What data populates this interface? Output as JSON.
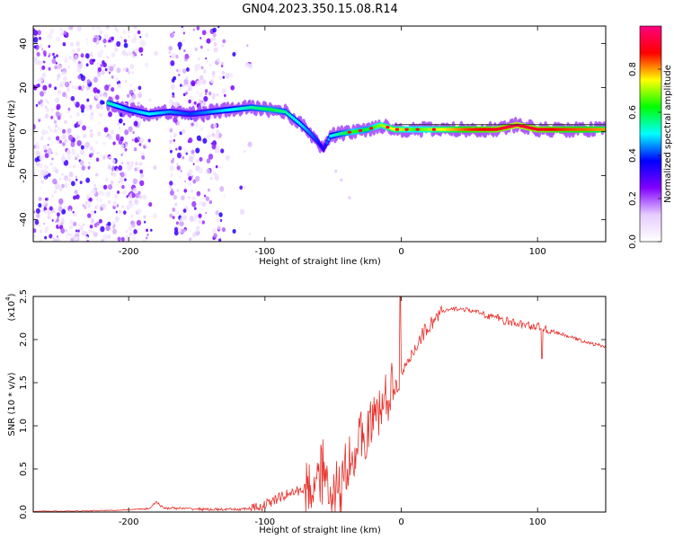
{
  "title": "GN04.2023.350.15.08.R14",
  "chart_data": [
    {
      "type": "heatmap",
      "xlabel": "Height of straight line (km)",
      "ylabel": "Frequency (Hz)",
      "xlim": [
        -270,
        150
      ],
      "ylim": [
        -50,
        48
      ],
      "xticks": [
        -200,
        -100,
        0,
        100
      ],
      "yticks": [
        -40,
        -20,
        0,
        20,
        40
      ],
      "colorbar": {
        "label": "Normalized spectral amplitude",
        "range": [
          0,
          1
        ],
        "ticks": [
          "0.0",
          "0.2",
          "0.4",
          "0.6",
          "0.8"
        ],
        "colormap": [
          "#ffffff",
          "#e6ccff",
          "#8000ff",
          "#0000ff",
          "#00ffff",
          "#00ff00",
          "#ffff00",
          "#ff0000",
          "#ff0080"
        ]
      },
      "ridge": [
        {
          "x": -215,
          "y": 13,
          "a": 0.55
        },
        {
          "x": -200,
          "y": 10,
          "a": 0.45
        },
        {
          "x": -185,
          "y": 8,
          "a": 0.5
        },
        {
          "x": -170,
          "y": 9,
          "a": 0.45
        },
        {
          "x": -155,
          "y": 8,
          "a": 0.4
        },
        {
          "x": -140,
          "y": 9,
          "a": 0.45
        },
        {
          "x": -125,
          "y": 10,
          "a": 0.5
        },
        {
          "x": -110,
          "y": 11,
          "a": 0.55
        },
        {
          "x": -95,
          "y": 10,
          "a": 0.6
        },
        {
          "x": -85,
          "y": 9,
          "a": 0.55
        },
        {
          "x": -75,
          "y": 4,
          "a": 0.5
        },
        {
          "x": -68,
          "y": 0,
          "a": 0.45
        },
        {
          "x": -62,
          "y": -4,
          "a": 0.4
        },
        {
          "x": -57,
          "y": -8,
          "a": 0.35
        },
        {
          "x": -52,
          "y": -2,
          "a": 0.5
        },
        {
          "x": -45,
          "y": -1,
          "a": 0.55
        },
        {
          "x": -35,
          "y": 0,
          "a": 0.65
        },
        {
          "x": -25,
          "y": 1,
          "a": 0.6
        },
        {
          "x": -15,
          "y": 3,
          "a": 0.7
        },
        {
          "x": -5,
          "y": 1,
          "a": 0.75
        },
        {
          "x": 10,
          "y": 1,
          "a": 0.65
        },
        {
          "x": 30,
          "y": 1,
          "a": 0.75
        },
        {
          "x": 50,
          "y": 1,
          "a": 0.85
        },
        {
          "x": 70,
          "y": 1,
          "a": 0.9
        },
        {
          "x": 85,
          "y": 3,
          "a": 0.95
        },
        {
          "x": 100,
          "y": 1,
          "a": 0.9
        },
        {
          "x": 120,
          "y": 1,
          "a": 0.85
        },
        {
          "x": 150,
          "y": 1,
          "a": 0.8
        }
      ]
    },
    {
      "type": "line",
      "xlabel": "Height of straight line (km)",
      "ylabel": "SNR (10 * v/v)",
      "yscale_label": "(x10",
      "yscale_exp": "4",
      "xlim": [
        -270,
        150
      ],
      "ylim": [
        0,
        2.5
      ],
      "xticks": [
        -200,
        -100,
        0,
        100
      ],
      "yticks": [
        "0.0",
        "0.5",
        "1.0",
        "1.5",
        "2.0",
        "2.5"
      ],
      "color": "#e8302a",
      "series": [
        {
          "x": [
            -270,
            -240,
            -210,
            -185,
            -180,
            -175,
            -160,
            -140,
            -120,
            -105,
            -95,
            -85,
            -75,
            -65,
            -60,
            -55,
            -50,
            -45,
            -40,
            -35,
            -30,
            -25,
            -20,
            -15,
            -10,
            -5,
            -2,
            0,
            5,
            10,
            15,
            20,
            25,
            30,
            40,
            50,
            60,
            70,
            80,
            90,
            100,
            110,
            120,
            130,
            140,
            150
          ],
          "y": [
            0.01,
            0.01,
            0.02,
            0.04,
            0.12,
            0.05,
            0.04,
            0.03,
            0.03,
            0.05,
            0.12,
            0.2,
            0.25,
            0.3,
            0.55,
            0.45,
            0.3,
            0.25,
            0.55,
            0.7,
            0.85,
            0.95,
            1.05,
            1.2,
            1.35,
            1.45,
            1.5,
            1.55,
            1.72,
            1.9,
            2.05,
            2.15,
            2.25,
            2.32,
            2.36,
            2.34,
            2.3,
            2.25,
            2.2,
            2.17,
            2.15,
            2.1,
            2.05,
            2.0,
            1.95,
            1.92
          ]
        }
      ]
    }
  ]
}
